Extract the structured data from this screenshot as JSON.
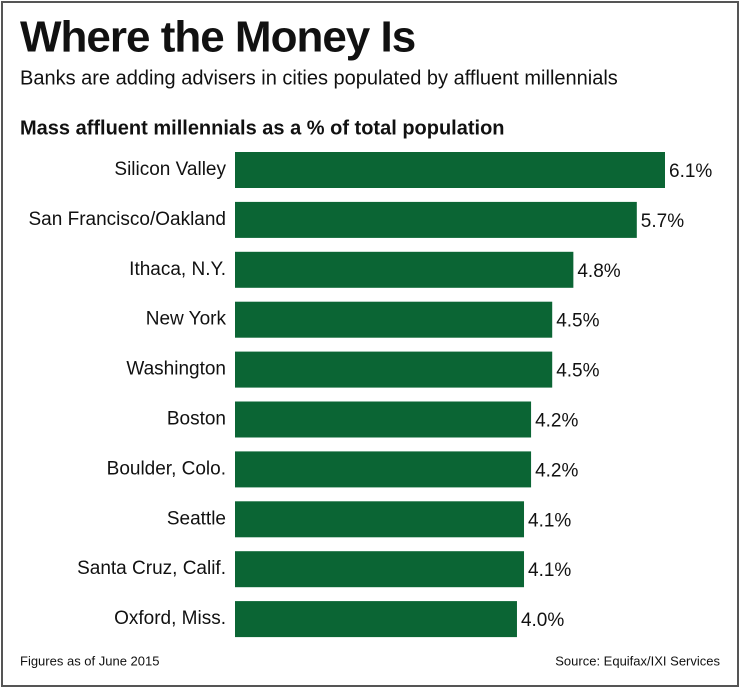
{
  "chart_data": {
    "type": "bar",
    "orientation": "horizontal",
    "title": "Where the Money Is",
    "subtitle": "Banks are adding advisers in cities populated by affluent millennials",
    "chart_title": "Mass affluent millennials as a % of total population",
    "categories": [
      "Silicon Valley",
      "San Francisco/Oakland",
      "Ithaca, N.Y.",
      "New York",
      "Washington",
      "Boston",
      "Boulder, Colo.",
      "Seattle",
      "Santa Cruz, Calif.",
      "Oxford, Miss."
    ],
    "values": [
      6.1,
      5.7,
      4.8,
      4.5,
      4.5,
      4.2,
      4.2,
      4.1,
      4.1,
      4.0
    ],
    "value_labels": [
      "6.1%",
      "5.7%",
      "4.8%",
      "4.5%",
      "4.5%",
      "4.2%",
      "4.2%",
      "4.1%",
      "4.1%",
      "4.0%"
    ],
    "color": "#0b6534",
    "footnote": "Figures as of June 2015",
    "source": "Source: Equifax/IXI Services"
  }
}
